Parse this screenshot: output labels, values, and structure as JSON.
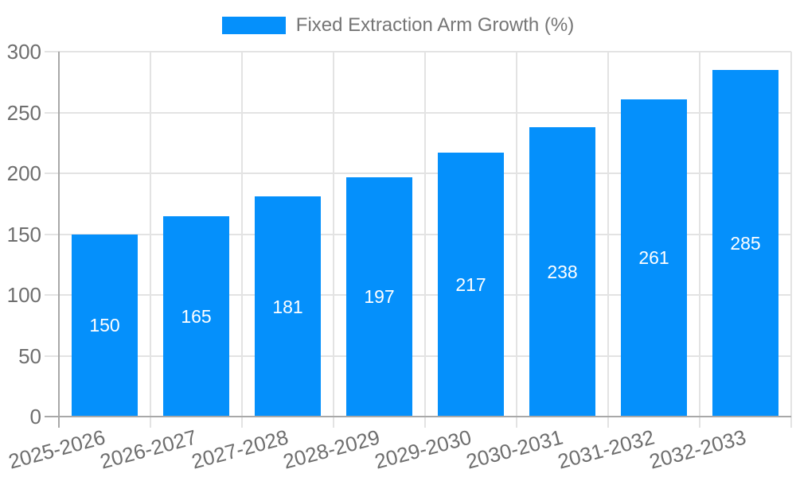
{
  "chart_data": {
    "type": "bar",
    "title": "",
    "legend": {
      "position": "top",
      "label": "Fixed Extraction Arm Growth (%)"
    },
    "categories": [
      "2025-2026",
      "2026-2027",
      "2027-2028",
      "2028-2029",
      "2029-2030",
      "2030-2031",
      "2031-2032",
      "2032-2033"
    ],
    "values": [
      150,
      165,
      181,
      197,
      217,
      238,
      261,
      285
    ],
    "xlabel": "",
    "ylabel": "",
    "ylim": [
      0,
      300
    ],
    "yticks": [
      0,
      50,
      100,
      150,
      200,
      250,
      300
    ],
    "grid": true,
    "value_labels_shown": true,
    "colors": {
      "bar": "#0590fb",
      "bar_label": "#ffffff",
      "gridline": "#e3e3e3",
      "axis_line": "#a8a8a8",
      "tick_text": "#6e6e6e",
      "legend_text": "#757575",
      "background": "#ffffff"
    }
  }
}
